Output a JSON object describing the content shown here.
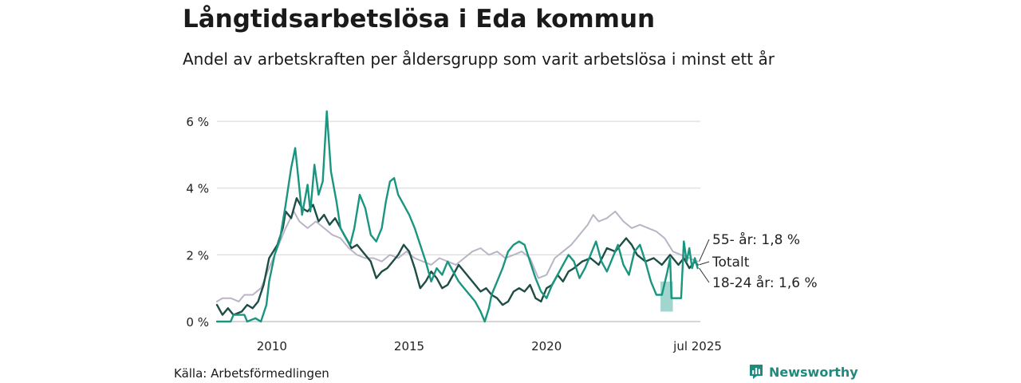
{
  "title": "Långtidsarbetslösa i Eda kommun",
  "subtitle": "Andel av arbetskraften per åldersgrupp som varit arbetslösa i minst ett år",
  "source": "Källa: Arbetsförmedlingen",
  "brand": {
    "name": "Newsworthy",
    "icon": "newsworthy-logo-icon",
    "color": "#1f8a7e"
  },
  "chart_data": {
    "type": "line",
    "title": "Långtidsarbetslösa i Eda kommun",
    "xlabel": "",
    "ylabel": "",
    "xlim": [
      2008.0,
      2025.6
    ],
    "ylim": [
      0,
      6.6
    ],
    "grid": true,
    "y_ticks": [
      0,
      2,
      4,
      6
    ],
    "y_tick_labels": [
      "0 %",
      "2 %",
      "4 %",
      "6 %"
    ],
    "x_ticks": [
      2010,
      2015,
      2020,
      2025.5
    ],
    "x_tick_labels": [
      "2010",
      "2015",
      "2020",
      "jul 2025"
    ],
    "series": [
      {
        "name": "55- år",
        "label": "55- år: 1,8 %",
        "color": "#b9b4c6",
        "width": 2,
        "points": [
          [
            2008.0,
            0.6
          ],
          [
            2008.2,
            0.7
          ],
          [
            2008.5,
            0.7
          ],
          [
            2008.8,
            0.6
          ],
          [
            2009.0,
            0.8
          ],
          [
            2009.3,
            0.8
          ],
          [
            2009.6,
            1.0
          ],
          [
            2009.9,
            1.6
          ],
          [
            2010.2,
            2.2
          ],
          [
            2010.5,
            2.8
          ],
          [
            2010.8,
            3.3
          ],
          [
            2011.0,
            3.0
          ],
          [
            2011.3,
            2.8
          ],
          [
            2011.6,
            3.0
          ],
          [
            2011.9,
            2.8
          ],
          [
            2012.2,
            2.6
          ],
          [
            2012.5,
            2.5
          ],
          [
            2012.8,
            2.2
          ],
          [
            2013.1,
            2.0
          ],
          [
            2013.4,
            1.9
          ],
          [
            2013.7,
            1.9
          ],
          [
            2014.0,
            1.8
          ],
          [
            2014.3,
            2.0
          ],
          [
            2014.6,
            1.9
          ],
          [
            2014.9,
            2.1
          ],
          [
            2015.2,
            1.9
          ],
          [
            2015.5,
            1.8
          ],
          [
            2015.8,
            1.7
          ],
          [
            2016.1,
            1.9
          ],
          [
            2016.4,
            1.8
          ],
          [
            2016.7,
            1.7
          ],
          [
            2017.0,
            1.9
          ],
          [
            2017.3,
            2.1
          ],
          [
            2017.6,
            2.2
          ],
          [
            2017.9,
            2.0
          ],
          [
            2018.2,
            2.1
          ],
          [
            2018.5,
            1.9
          ],
          [
            2018.8,
            2.0
          ],
          [
            2019.1,
            2.1
          ],
          [
            2019.4,
            1.9
          ],
          [
            2019.7,
            1.3
          ],
          [
            2020.0,
            1.4
          ],
          [
            2020.3,
            1.9
          ],
          [
            2020.6,
            2.1
          ],
          [
            2020.9,
            2.3
          ],
          [
            2021.2,
            2.6
          ],
          [
            2021.5,
            2.9
          ],
          [
            2021.7,
            3.2
          ],
          [
            2021.9,
            3.0
          ],
          [
            2022.2,
            3.1
          ],
          [
            2022.5,
            3.3
          ],
          [
            2022.8,
            3.0
          ],
          [
            2023.1,
            2.8
          ],
          [
            2023.4,
            2.9
          ],
          [
            2023.7,
            2.8
          ],
          [
            2024.0,
            2.7
          ],
          [
            2024.3,
            2.5
          ],
          [
            2024.6,
            2.1
          ],
          [
            2024.9,
            2.0
          ],
          [
            2025.2,
            1.9
          ],
          [
            2025.5,
            1.8
          ]
        ]
      },
      {
        "name": "Totalt",
        "label": "Totalt",
        "color": "#1e4d45",
        "width": 2.4,
        "points": [
          [
            2008.0,
            0.5
          ],
          [
            2008.2,
            0.2
          ],
          [
            2008.4,
            0.4
          ],
          [
            2008.6,
            0.2
          ],
          [
            2008.9,
            0.3
          ],
          [
            2009.1,
            0.5
          ],
          [
            2009.3,
            0.4
          ],
          [
            2009.5,
            0.6
          ],
          [
            2009.7,
            1.1
          ],
          [
            2009.9,
            1.9
          ],
          [
            2010.2,
            2.3
          ],
          [
            2010.4,
            2.8
          ],
          [
            2010.5,
            3.3
          ],
          [
            2010.7,
            3.1
          ],
          [
            2010.9,
            3.7
          ],
          [
            2011.1,
            3.4
          ],
          [
            2011.3,
            3.3
          ],
          [
            2011.5,
            3.5
          ],
          [
            2011.7,
            3.0
          ],
          [
            2011.9,
            3.2
          ],
          [
            2012.1,
            2.9
          ],
          [
            2012.3,
            3.1
          ],
          [
            2012.5,
            2.8
          ],
          [
            2012.7,
            2.5
          ],
          [
            2012.9,
            2.2
          ],
          [
            2013.1,
            2.3
          ],
          [
            2013.4,
            2.0
          ],
          [
            2013.6,
            1.8
          ],
          [
            2013.8,
            1.3
          ],
          [
            2014.0,
            1.5
          ],
          [
            2014.2,
            1.6
          ],
          [
            2014.4,
            1.8
          ],
          [
            2014.6,
            2.0
          ],
          [
            2014.8,
            2.3
          ],
          [
            2015.0,
            2.1
          ],
          [
            2015.2,
            1.6
          ],
          [
            2015.4,
            1.0
          ],
          [
            2015.6,
            1.2
          ],
          [
            2015.8,
            1.5
          ],
          [
            2016.0,
            1.3
          ],
          [
            2016.2,
            1.0
          ],
          [
            2016.4,
            1.1
          ],
          [
            2016.6,
            1.4
          ],
          [
            2016.8,
            1.7
          ],
          [
            2017.0,
            1.5
          ],
          [
            2017.2,
            1.3
          ],
          [
            2017.4,
            1.1
          ],
          [
            2017.6,
            0.9
          ],
          [
            2017.8,
            1.0
          ],
          [
            2018.0,
            0.8
          ],
          [
            2018.2,
            0.7
          ],
          [
            2018.4,
            0.5
          ],
          [
            2018.6,
            0.6
          ],
          [
            2018.8,
            0.9
          ],
          [
            2019.0,
            1.0
          ],
          [
            2019.2,
            0.9
          ],
          [
            2019.4,
            1.1
          ],
          [
            2019.6,
            0.7
          ],
          [
            2019.8,
            0.6
          ],
          [
            2020.0,
            1.0
          ],
          [
            2020.2,
            1.1
          ],
          [
            2020.4,
            1.4
          ],
          [
            2020.6,
            1.2
          ],
          [
            2020.8,
            1.5
          ],
          [
            2021.0,
            1.6
          ],
          [
            2021.3,
            1.8
          ],
          [
            2021.6,
            1.9
          ],
          [
            2021.9,
            1.7
          ],
          [
            2022.2,
            2.2
          ],
          [
            2022.5,
            2.1
          ],
          [
            2022.8,
            2.4
          ],
          [
            2022.9,
            2.5
          ],
          [
            2023.1,
            2.3
          ],
          [
            2023.3,
            2.0
          ],
          [
            2023.6,
            1.8
          ],
          [
            2023.9,
            1.9
          ],
          [
            2024.2,
            1.7
          ],
          [
            2024.5,
            2.0
          ],
          [
            2024.8,
            1.7
          ],
          [
            2025.0,
            1.9
          ],
          [
            2025.2,
            1.6
          ],
          [
            2025.4,
            1.8
          ],
          [
            2025.5,
            1.7
          ]
        ]
      },
      {
        "name": "18-24 år",
        "label": "18-24 år: 1,6 %",
        "color": "#1a9580",
        "width": 2.4,
        "points": [
          [
            2008.0,
            0.0
          ],
          [
            2008.5,
            0.0
          ],
          [
            2008.6,
            0.2
          ],
          [
            2009.0,
            0.2
          ],
          [
            2009.1,
            0.0
          ],
          [
            2009.4,
            0.1
          ],
          [
            2009.6,
            0.0
          ],
          [
            2009.8,
            0.5
          ],
          [
            2009.9,
            1.2
          ],
          [
            2010.1,
            2.0
          ],
          [
            2010.3,
            2.5
          ],
          [
            2010.5,
            3.5
          ],
          [
            2010.7,
            4.6
          ],
          [
            2010.85,
            5.2
          ],
          [
            2011.0,
            4.0
          ],
          [
            2011.1,
            3.2
          ],
          [
            2011.3,
            4.1
          ],
          [
            2011.4,
            3.3
          ],
          [
            2011.55,
            4.7
          ],
          [
            2011.7,
            3.8
          ],
          [
            2011.85,
            4.2
          ],
          [
            2012.0,
            6.3
          ],
          [
            2012.15,
            4.5
          ],
          [
            2012.35,
            3.6
          ],
          [
            2012.5,
            2.8
          ],
          [
            2012.7,
            2.5
          ],
          [
            2012.85,
            2.3
          ],
          [
            2013.0,
            2.8
          ],
          [
            2013.2,
            3.8
          ],
          [
            2013.4,
            3.4
          ],
          [
            2013.6,
            2.6
          ],
          [
            2013.8,
            2.4
          ],
          [
            2014.0,
            2.8
          ],
          [
            2014.15,
            3.6
          ],
          [
            2014.3,
            4.2
          ],
          [
            2014.45,
            4.3
          ],
          [
            2014.6,
            3.8
          ],
          [
            2014.8,
            3.5
          ],
          [
            2015.0,
            3.2
          ],
          [
            2015.2,
            2.8
          ],
          [
            2015.4,
            2.3
          ],
          [
            2015.6,
            1.8
          ],
          [
            2015.8,
            1.2
          ],
          [
            2016.0,
            1.6
          ],
          [
            2016.2,
            1.4
          ],
          [
            2016.4,
            1.8
          ],
          [
            2016.6,
            1.5
          ],
          [
            2016.8,
            1.2
          ],
          [
            2017.0,
            1.0
          ],
          [
            2017.2,
            0.8
          ],
          [
            2017.4,
            0.6
          ],
          [
            2017.6,
            0.3
          ],
          [
            2017.75,
            0.0
          ],
          [
            2017.9,
            0.4
          ],
          [
            2018.0,
            0.8
          ],
          [
            2018.2,
            1.2
          ],
          [
            2018.4,
            1.6
          ],
          [
            2018.6,
            2.1
          ],
          [
            2018.8,
            2.3
          ],
          [
            2019.0,
            2.4
          ],
          [
            2019.2,
            2.3
          ],
          [
            2019.4,
            1.8
          ],
          [
            2019.6,
            1.3
          ],
          [
            2019.8,
            0.9
          ],
          [
            2020.0,
            0.7
          ],
          [
            2020.2,
            1.1
          ],
          [
            2020.4,
            1.4
          ],
          [
            2020.6,
            1.7
          ],
          [
            2020.8,
            2.0
          ],
          [
            2021.0,
            1.8
          ],
          [
            2021.2,
            1.3
          ],
          [
            2021.4,
            1.6
          ],
          [
            2021.6,
            2.0
          ],
          [
            2021.8,
            2.4
          ],
          [
            2022.0,
            1.8
          ],
          [
            2022.2,
            1.5
          ],
          [
            2022.4,
            1.9
          ],
          [
            2022.6,
            2.3
          ],
          [
            2022.8,
            1.7
          ],
          [
            2023.0,
            1.4
          ],
          [
            2023.2,
            2.1
          ],
          [
            2023.4,
            2.3
          ],
          [
            2023.6,
            1.8
          ],
          [
            2023.8,
            1.2
          ],
          [
            2024.0,
            0.8
          ],
          [
            2024.2,
            0.8
          ],
          [
            2024.4,
            1.5
          ],
          [
            2024.5,
            1.9
          ],
          [
            2024.55,
            0.7
          ],
          [
            2024.9,
            0.7
          ],
          [
            2025.0,
            2.4
          ],
          [
            2025.1,
            1.8
          ],
          [
            2025.2,
            2.2
          ],
          [
            2025.3,
            1.6
          ],
          [
            2025.4,
            1.9
          ],
          [
            2025.5,
            1.6
          ]
        ]
      }
    ],
    "uncertainty_band": {
      "color": "#8fcfc6",
      "x": [
        2024.15,
        2024.6
      ],
      "y": [
        0.3,
        1.2
      ]
    }
  }
}
